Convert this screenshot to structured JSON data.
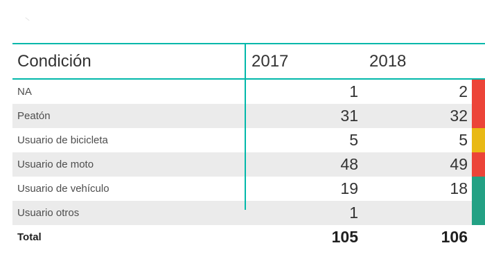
{
  "chart_data": {
    "type": "table",
    "columns": [
      "Condición",
      "2017",
      "2018"
    ],
    "rows": [
      {
        "label": "NA",
        "v2017": "1",
        "v2018": "2",
        "status": "red"
      },
      {
        "label": "Peatón",
        "v2017": "31",
        "v2018": "32",
        "status": "red"
      },
      {
        "label": "Usuario de bicicleta",
        "v2017": "5",
        "v2018": "5",
        "status": "yellow"
      },
      {
        "label": "Usuario de moto",
        "v2017": "48",
        "v2018": "49",
        "status": "red"
      },
      {
        "label": "Usuario de vehículo",
        "v2017": "19",
        "v2018": "18",
        "status": "green"
      },
      {
        "label": "Usuario otros",
        "v2017": "1",
        "v2018": "",
        "status": "green"
      }
    ],
    "total": {
      "label": "Total",
      "v2017": "105",
      "v2018": "106"
    }
  },
  "colors": {
    "accent_teal": "#01b8aa",
    "status_red": "#ec4438",
    "status_yellow": "#e9b914",
    "status_green": "#23a184",
    "row_band_gray": "#ebebeb",
    "header_text": "#333333",
    "label_text": "#4d4d4d",
    "number_text": "#333333",
    "total_text": "#1f1f1f"
  }
}
